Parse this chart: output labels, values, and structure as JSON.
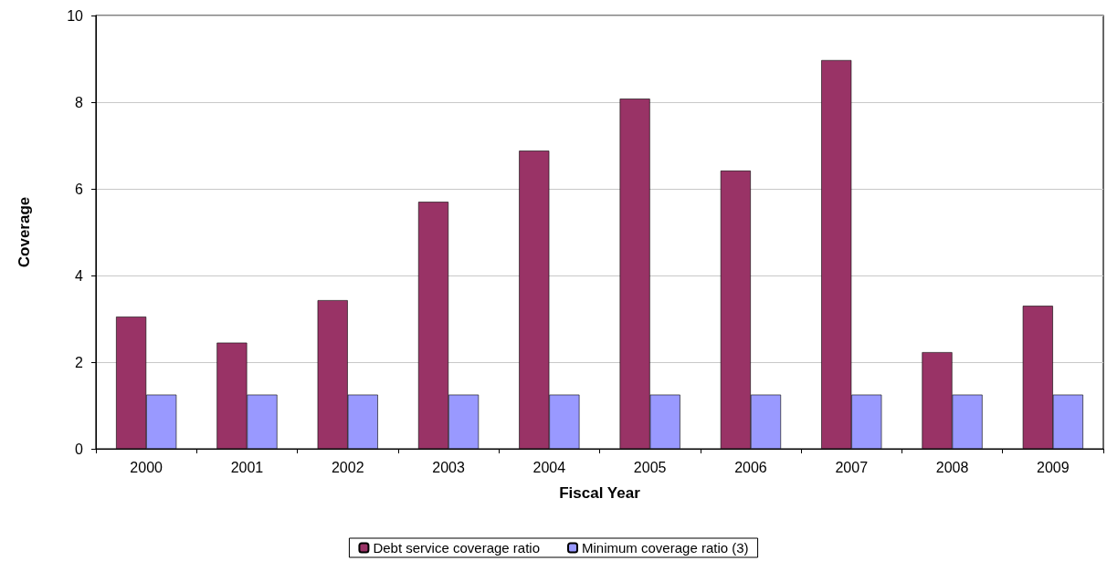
{
  "chart_data": {
    "type": "bar",
    "xlabel": "Fiscal Year",
    "ylabel": "Coverage",
    "categories": [
      "2000",
      "2001",
      "2002",
      "2003",
      "2004",
      "2005",
      "2006",
      "2007",
      "2008",
      "2009"
    ],
    "series": [
      {
        "name": "Debt service coverage ratio",
        "color": "#993366",
        "values": [
          3.05,
          2.45,
          3.43,
          5.7,
          6.88,
          8.08,
          6.42,
          8.97,
          2.23,
          3.3
        ]
      },
      {
        "name": "Minimum coverage ratio (3)",
        "color": "#9999ff",
        "values": [
          1.25,
          1.25,
          1.25,
          1.25,
          1.25,
          1.25,
          1.25,
          1.25,
          1.25,
          1.25
        ]
      }
    ],
    "ylim": [
      0,
      10
    ],
    "yticks": [
      0,
      2,
      4,
      6,
      8,
      10
    ],
    "grid": "y",
    "legend": "bottom"
  }
}
